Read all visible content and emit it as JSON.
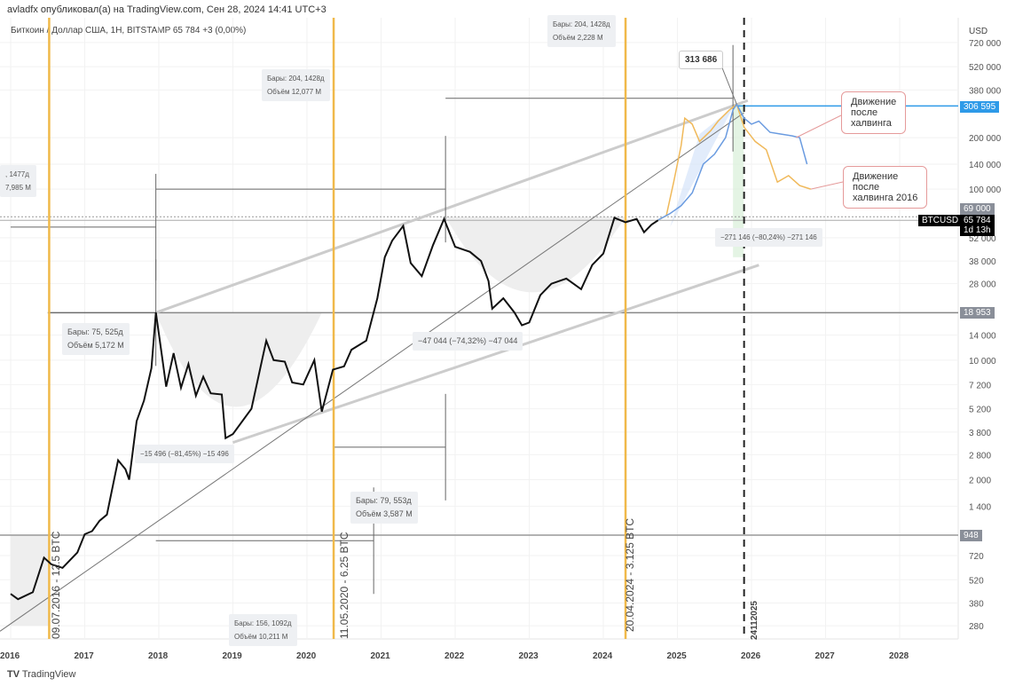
{
  "header": {
    "published": "avladfx опубликовал(а) на TradingView.com, Сен 28, 2024 14:41 UTC+3",
    "symbol": "Биткоин / Доллар США, 1H, BITSTAMP  65 784  +3 (0,00%)",
    "currency": "USD"
  },
  "footer": {
    "logo": "TradingView"
  },
  "chart_data": {
    "type": "line",
    "scale": "log",
    "x_ticks": [
      "2016",
      "2017",
      "2018",
      "2019",
      "2020",
      "2021",
      "2022",
      "2023",
      "2024",
      "2025",
      "2026",
      "2027",
      "2028"
    ],
    "y_ticks": [
      "720 000",
      "520 000",
      "380 000",
      "200 000",
      "140 000",
      "100 000",
      "52 000",
      "38 000",
      "28 000",
      "14 000",
      "10 000",
      "7 200",
      "5 200",
      "3 800",
      "2 800",
      "2 000",
      "1 400",
      "720",
      "520",
      "380",
      "280"
    ],
    "y_tick_values": [
      720000,
      520000,
      380000,
      200000,
      140000,
      100000,
      52000,
      38000,
      28000,
      14000,
      10000,
      7200,
      5200,
      3800,
      2800,
      2000,
      1400,
      720,
      520,
      380,
      280
    ],
    "series": [
      {
        "name": "BTCUSD",
        "color": "#111111",
        "points": [
          [
            2016.0,
            430
          ],
          [
            2016.1,
            400
          ],
          [
            2016.3,
            440
          ],
          [
            2016.45,
            700
          ],
          [
            2016.55,
            640
          ],
          [
            2016.7,
            610
          ],
          [
            2016.9,
            750
          ],
          [
            2017.0,
            960
          ],
          [
            2017.1,
            1000
          ],
          [
            2017.2,
            1150
          ],
          [
            2017.3,
            1250
          ],
          [
            2017.45,
            2600
          ],
          [
            2017.55,
            2300
          ],
          [
            2017.6,
            2000
          ],
          [
            2017.7,
            4400
          ],
          [
            2017.8,
            5800
          ],
          [
            2017.9,
            9000
          ],
          [
            2017.96,
            19000
          ],
          [
            2018.05,
            10000
          ],
          [
            2018.1,
            7000
          ],
          [
            2018.2,
            11000
          ],
          [
            2018.3,
            6900
          ],
          [
            2018.4,
            9500
          ],
          [
            2018.5,
            6200
          ],
          [
            2018.6,
            8000
          ],
          [
            2018.7,
            6400
          ],
          [
            2018.85,
            6300
          ],
          [
            2018.9,
            3500
          ],
          [
            2019.0,
            3700
          ],
          [
            2019.25,
            5200
          ],
          [
            2019.45,
            13000
          ],
          [
            2019.55,
            10000
          ],
          [
            2019.7,
            9800
          ],
          [
            2019.8,
            7400
          ],
          [
            2019.95,
            7200
          ],
          [
            2020.1,
            10000
          ],
          [
            2020.2,
            5000
          ],
          [
            2020.35,
            8800
          ],
          [
            2020.5,
            9200
          ],
          [
            2020.6,
            11500
          ],
          [
            2020.8,
            13000
          ],
          [
            2020.95,
            23000
          ],
          [
            2021.05,
            40000
          ],
          [
            2021.15,
            50000
          ],
          [
            2021.3,
            61000
          ],
          [
            2021.4,
            37000
          ],
          [
            2021.55,
            31000
          ],
          [
            2021.7,
            47000
          ],
          [
            2021.85,
            67000
          ],
          [
            2022.0,
            46000
          ],
          [
            2022.2,
            43000
          ],
          [
            2022.35,
            38000
          ],
          [
            2022.45,
            29000
          ],
          [
            2022.5,
            20000
          ],
          [
            2022.65,
            23000
          ],
          [
            2022.8,
            19000
          ],
          [
            2022.9,
            16000
          ],
          [
            2023.0,
            16600
          ],
          [
            2023.15,
            24000
          ],
          [
            2023.3,
            28000
          ],
          [
            2023.5,
            30000
          ],
          [
            2023.7,
            26000
          ],
          [
            2023.85,
            36000
          ],
          [
            2024.0,
            42000
          ],
          [
            2024.15,
            68000
          ],
          [
            2024.3,
            64000
          ],
          [
            2024.45,
            67000
          ],
          [
            2024.55,
            56000
          ],
          [
            2024.65,
            62000
          ],
          [
            2024.74,
            65784
          ]
        ]
      },
      {
        "name": "Движение после халвинга 2016",
        "color": "#f0b95a",
        "points": [
          [
            2024.74,
            66000
          ],
          [
            2024.85,
            70000
          ],
          [
            2024.95,
            110000
          ],
          [
            2025.05,
            180000
          ],
          [
            2025.1,
            260000
          ],
          [
            2025.2,
            240000
          ],
          [
            2025.3,
            190000
          ],
          [
            2025.45,
            220000
          ],
          [
            2025.55,
            250000
          ],
          [
            2025.7,
            290000
          ],
          [
            2025.8,
            313686
          ],
          [
            2025.9,
            230000
          ],
          [
            2026.05,
            190000
          ],
          [
            2026.2,
            170000
          ],
          [
            2026.35,
            110000
          ],
          [
            2026.5,
            120000
          ],
          [
            2026.65,
            105000
          ],
          [
            2026.8,
            100000
          ]
        ]
      },
      {
        "name": "Движение после халвинга",
        "color": "#6a9be0",
        "points": [
          [
            2024.74,
            66000
          ],
          [
            2024.9,
            72000
          ],
          [
            2025.05,
            80000
          ],
          [
            2025.2,
            95000
          ],
          [
            2025.35,
            140000
          ],
          [
            2025.5,
            160000
          ],
          [
            2025.65,
            200000
          ],
          [
            2025.75,
            290000
          ],
          [
            2025.8,
            313686
          ],
          [
            2025.9,
            260000
          ],
          [
            2026.0,
            240000
          ],
          [
            2026.1,
            250000
          ],
          [
            2026.25,
            215000
          ],
          [
            2026.4,
            210000
          ],
          [
            2026.55,
            205000
          ],
          [
            2026.65,
            200000
          ],
          [
            2026.75,
            140000
          ]
        ]
      }
    ],
    "halvings": [
      {
        "year": 2016.52,
        "label": "09.07.2016 - 12.5 BTC"
      },
      {
        "year": 2020.36,
        "label": "11.05.2020 - 6.25 BTC"
      },
      {
        "year": 2024.3,
        "label": "20.04.2024 - 3.125 BTC"
      }
    ],
    "target_date": {
      "year": 2025.9,
      "label": "24112025"
    },
    "levels": {
      "top": "306 595",
      "top_value": 306595,
      "prev_ath": "69 000",
      "prev_ath_value": 69000,
      "mid": "18 953",
      "mid_value": 18953,
      "low": "948",
      "low_value": 948,
      "last": "65 784",
      "last_value": 65784,
      "last_symbol": "BTCUSD",
      "countdown": "1d 13h"
    },
    "peak_label": "313 686",
    "boxes": [
      {
        "line1": "Бары: 204, 1428д",
        "line2": "Объём 2,228 M"
      },
      {
        "line1": "Бары: 204, 1428д",
        "line2": "Объём 12,077 M"
      },
      {
        "line1": ", 1477д",
        "line2": "7,985 M"
      },
      {
        "line1": "Бары: 75, 525д",
        "line2": "Объём 5,172 M"
      },
      {
        "line1": "Бары: 79, 553д",
        "line2": "Объём 3,587 M"
      },
      {
        "line1": "Бары: 156, 1092д",
        "line2": "Объём 10,211 M"
      }
    ],
    "drawdowns": [
      "−15 496 (−81,45%) −15 496",
      "−47 044 (−74,32%) −47 044",
      "−271 146 (−80,24%) −271 146"
    ],
    "notes": [
      "Движение\nпосле\nхалвинга",
      "Движение\nпосле\nхалвинга 2016"
    ]
  }
}
